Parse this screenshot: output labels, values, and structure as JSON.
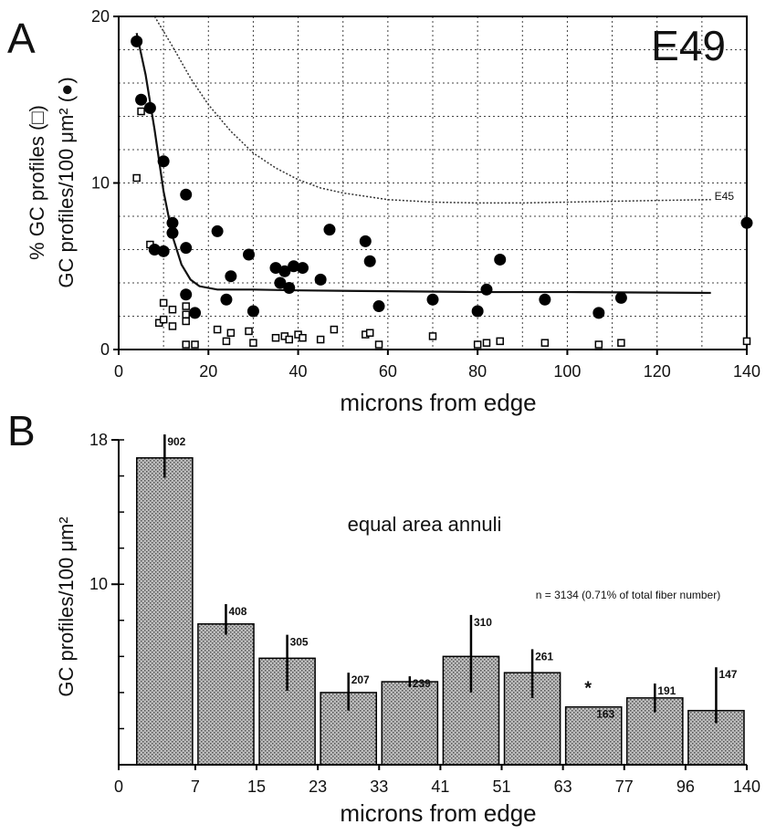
{
  "chart_data": [
    {
      "panel_label": "A",
      "type": "scatter",
      "annotation": "E49",
      "xlabel": "microns from edge",
      "ylabel_line1": "% GC profiles (□)",
      "ylabel_line2": "GC profiles/100 μm² (●)",
      "xlim": [
        0,
        140
      ],
      "ylim": [
        0,
        20
      ],
      "xticks": [
        "0",
        "20",
        "40",
        "60",
        "80",
        "100",
        "120",
        "140"
      ],
      "yticks": [
        "0",
        "10",
        "20"
      ],
      "grid": true,
      "series": [
        {
          "marker": "filled-circle",
          "points": [
            [
              4,
              18.5
            ],
            [
              5,
              15.0
            ],
            [
              7,
              14.5
            ],
            [
              8,
              6.0
            ],
            [
              10,
              11.3
            ],
            [
              10,
              5.9
            ],
            [
              12,
              7.6
            ],
            [
              12,
              7.0
            ],
            [
              15,
              6.1
            ],
            [
              15,
              9.3
            ],
            [
              15,
              3.3
            ],
            [
              17,
              2.2
            ],
            [
              22,
              7.1
            ],
            [
              24,
              3.0
            ],
            [
              25,
              4.4
            ],
            [
              29,
              5.7
            ],
            [
              30,
              2.3
            ],
            [
              35,
              4.9
            ],
            [
              36,
              4.0
            ],
            [
              37,
              4.7
            ],
            [
              38,
              3.7
            ],
            [
              39,
              5.0
            ],
            [
              41,
              4.9
            ],
            [
              45,
              4.2
            ],
            [
              47,
              7.2
            ],
            [
              55,
              6.5
            ],
            [
              56,
              5.3
            ],
            [
              58,
              2.6
            ],
            [
              70,
              3.0
            ],
            [
              80,
              2.3
            ],
            [
              82,
              3.6
            ],
            [
              85,
              5.4
            ],
            [
              95,
              3.0
            ],
            [
              107,
              2.2
            ],
            [
              112,
              3.1
            ],
            [
              140,
              7.6
            ]
          ]
        },
        {
          "marker": "open-square",
          "points": [
            [
              4,
              10.3
            ],
            [
              5,
              14.3
            ],
            [
              7,
              6.3
            ],
            [
              9,
              1.6
            ],
            [
              10,
              1.8
            ],
            [
              10,
              2.8
            ],
            [
              12,
              1.4
            ],
            [
              12,
              2.4
            ],
            [
              15,
              1.7
            ],
            [
              15,
              2.1
            ],
            [
              15,
              2.6
            ],
            [
              15,
              0.3
            ],
            [
              17,
              0.3
            ],
            [
              22,
              1.2
            ],
            [
              24,
              0.5
            ],
            [
              25,
              1.0
            ],
            [
              29,
              1.1
            ],
            [
              30,
              0.4
            ],
            [
              35,
              0.7
            ],
            [
              37,
              0.8
            ],
            [
              38,
              0.6
            ],
            [
              40,
              0.9
            ],
            [
              41,
              0.7
            ],
            [
              45,
              0.6
            ],
            [
              48,
              1.2
            ],
            [
              55,
              0.9
            ],
            [
              56,
              1.0
            ],
            [
              58,
              0.3
            ],
            [
              70,
              0.8
            ],
            [
              80,
              0.3
            ],
            [
              82,
              0.4
            ],
            [
              85,
              0.5
            ],
            [
              95,
              0.4
            ],
            [
              107,
              0.3
            ],
            [
              112,
              0.4
            ],
            [
              140,
              0.5
            ]
          ]
        },
        {
          "style": "solid-fit",
          "points": [
            [
              4,
              19.0
            ],
            [
              6,
              16.5
            ],
            [
              8,
              13.2
            ],
            [
              10,
              9.5
            ],
            [
              12,
              6.8
            ],
            [
              14,
              5.1
            ],
            [
              16,
              4.2
            ],
            [
              18,
              3.8
            ],
            [
              22,
              3.6
            ],
            [
              30,
              3.6
            ],
            [
              40,
              3.55
            ],
            [
              60,
              3.5
            ],
            [
              80,
              3.45
            ],
            [
              100,
              3.45
            ],
            [
              132,
              3.4
            ]
          ]
        },
        {
          "name": "E45",
          "style": "dotted",
          "points": [
            [
              8,
              20.0
            ],
            [
              12,
              18.2
            ],
            [
              16,
              16.3
            ],
            [
              20,
              14.7
            ],
            [
              25,
              13.1
            ],
            [
              30,
              11.8
            ],
            [
              35,
              10.9
            ],
            [
              40,
              10.2
            ],
            [
              45,
              9.7
            ],
            [
              50,
              9.4
            ],
            [
              60,
              9.0
            ],
            [
              70,
              8.85
            ],
            [
              80,
              8.8
            ],
            [
              90,
              8.8
            ],
            [
              100,
              8.85
            ],
            [
              110,
              8.9
            ],
            [
              120,
              8.95
            ],
            [
              132,
              9.0
            ]
          ]
        }
      ]
    },
    {
      "panel_label": "B",
      "type": "bar",
      "annotation": "equal area annuli",
      "note": "n = 3134 (0.71% of total fiber number)",
      "xlabel": "microns from edge",
      "ylabel": "GC profiles/100 μm²",
      "ylim": [
        0,
        18
      ],
      "yticks": [
        "10",
        "18"
      ],
      "x_edges": [
        "0",
        "7",
        "15",
        "23",
        "33",
        "41",
        "51",
        "63",
        "77",
        "96",
        "140"
      ],
      "categories": [
        "0-7",
        "7-15",
        "15-23",
        "23-33",
        "33-41",
        "41-51",
        "51-63",
        "63-77",
        "77-96",
        "96-140"
      ],
      "values": [
        17.0,
        7.8,
        5.9,
        4.0,
        4.6,
        6.0,
        5.1,
        3.2,
        3.7,
        3.0
      ],
      "error_high": [
        18.3,
        8.9,
        7.2,
        5.1,
        4.9,
        8.3,
        6.4,
        3.2,
        4.5,
        5.4
      ],
      "error_low": [
        15.9,
        7.2,
        4.1,
        3.0,
        4.3,
        4.0,
        3.7,
        3.2,
        2.9,
        2.3
      ],
      "counts": [
        "902",
        "408",
        "305",
        "207",
        "239",
        "310",
        "261",
        "163",
        "191",
        "147"
      ],
      "star_label": "*",
      "star_index": 7
    }
  ]
}
